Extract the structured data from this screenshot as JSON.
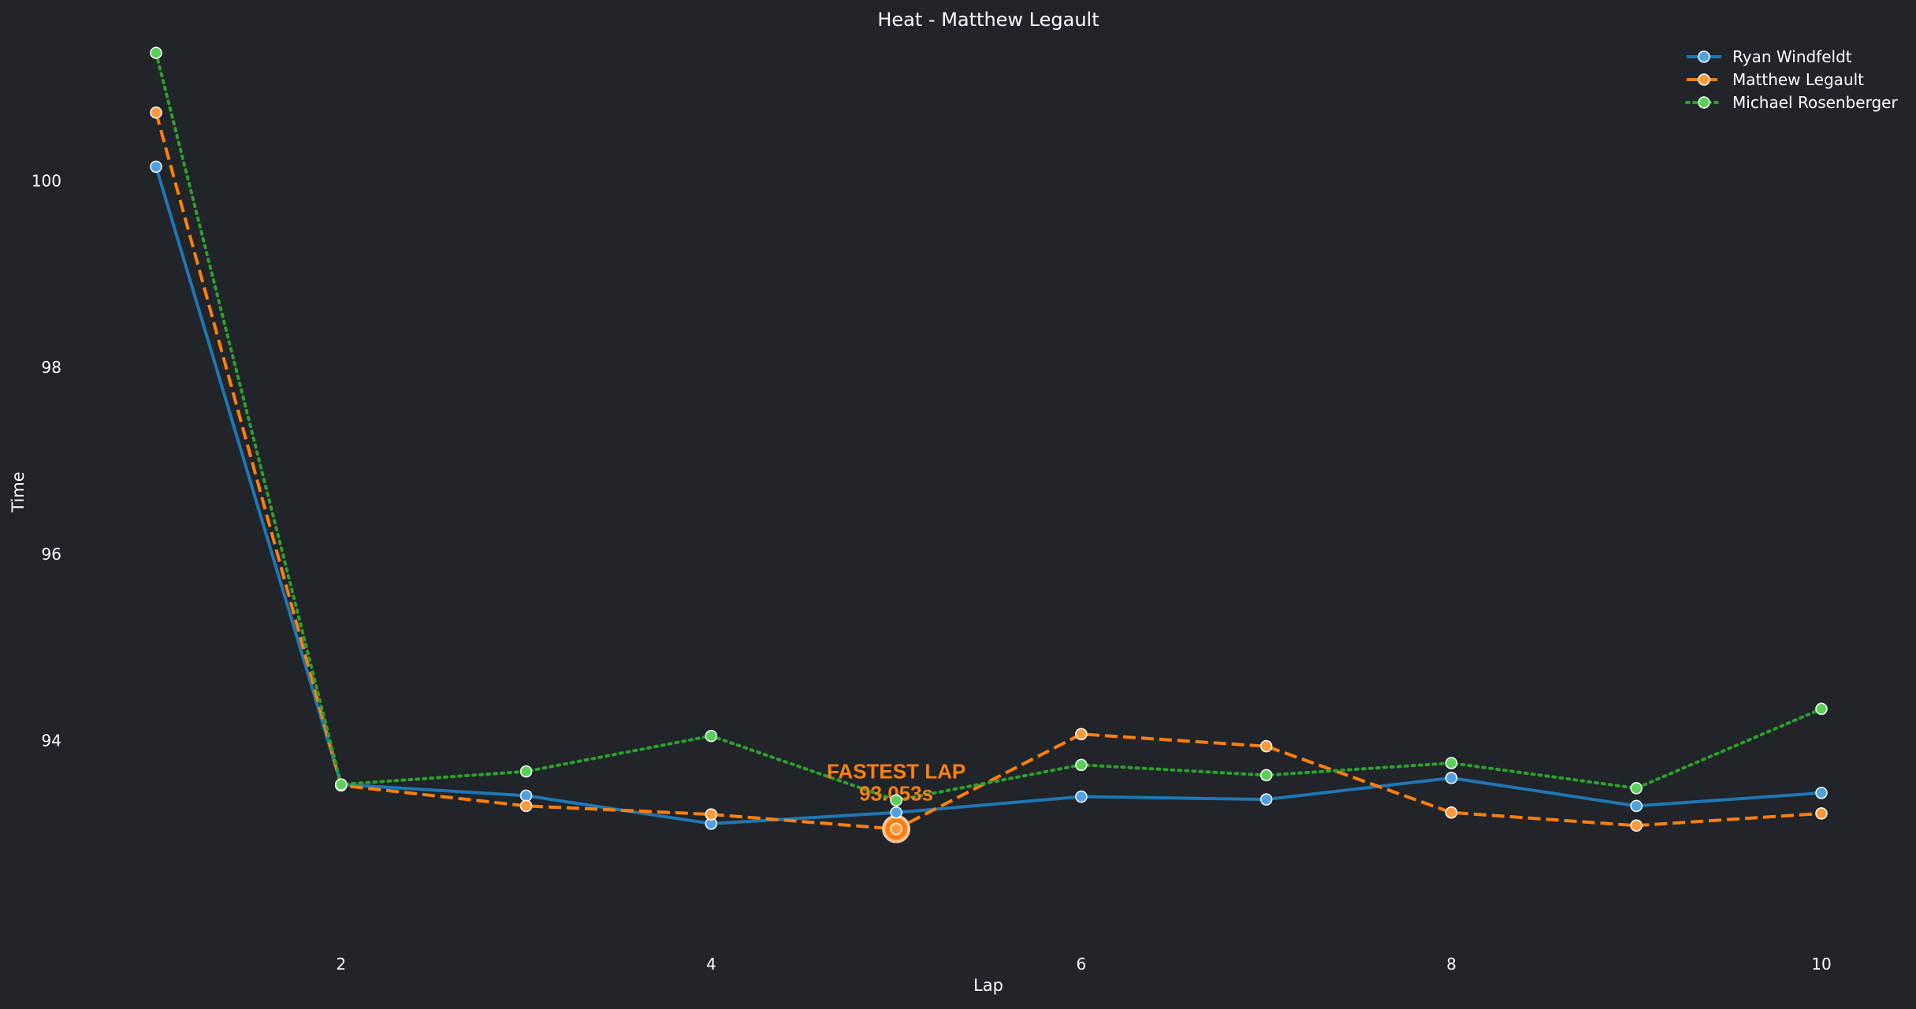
{
  "chart_data": {
    "type": "line",
    "title": "Heat - Matthew Legault",
    "xlabel": "Lap",
    "ylabel": "Time",
    "x": [
      1,
      2,
      3,
      4,
      5,
      6,
      7,
      8,
      9,
      10
    ],
    "xticks": [
      2,
      4,
      6,
      8,
      10
    ],
    "yticks": [
      94,
      96,
      98,
      100
    ],
    "xlim": [
      1,
      10
    ],
    "ylim": [
      91.8,
      101.7
    ],
    "grid": false,
    "legend_position": "top-right",
    "series": [
      {
        "name": "Ryan Windfeldt",
        "color": "#1f77b4",
        "marker_color": "#4fa1e0",
        "style": "solid",
        "values": [
          100.15,
          93.53,
          93.41,
          93.11,
          93.23,
          93.4,
          93.37,
          93.6,
          93.3,
          93.44
        ]
      },
      {
        "name": "Matthew Legault",
        "color": "#ff7f0e",
        "marker_color": "#ff9a3c",
        "style": "dashed",
        "values": [
          100.73,
          93.52,
          93.3,
          93.21,
          93.053,
          94.07,
          93.94,
          93.23,
          93.09,
          93.22
        ]
      },
      {
        "name": "Michael Rosenberger",
        "color": "#2ca02c",
        "marker_color": "#5ad05a",
        "style": "dotted",
        "values": [
          101.37,
          93.53,
          93.67,
          94.05,
          93.36,
          93.74,
          93.63,
          93.76,
          93.49,
          94.34
        ]
      }
    ],
    "annotation": {
      "line1": "FASTEST LAP",
      "line2": "93.053s",
      "x": 5,
      "y": 93.053,
      "color": "#ff7f0e"
    }
  }
}
